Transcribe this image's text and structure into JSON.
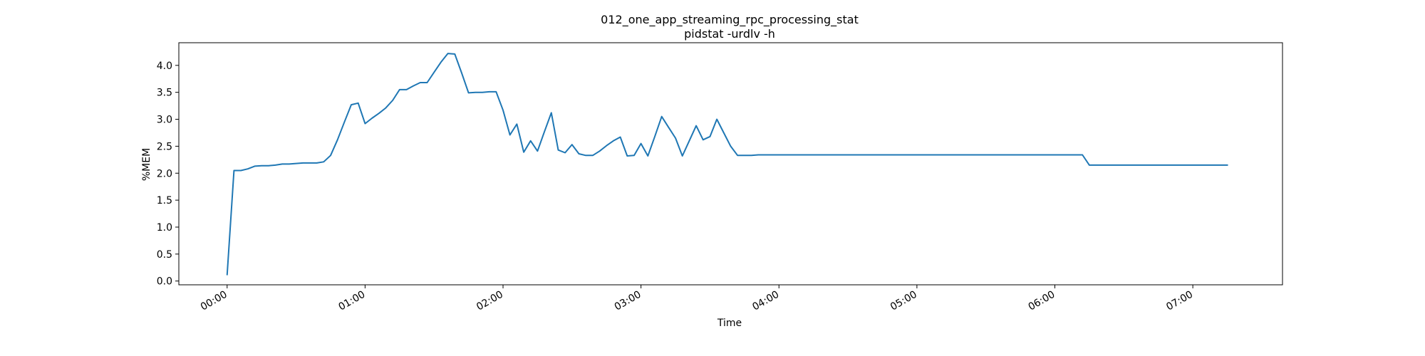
{
  "chart_data": {
    "type": "line",
    "title": "012_one_app_streaming_rpc_processing_stat",
    "subtitle": "pidstat -urdlv -h",
    "xlabel": "Time",
    "ylabel": "%MEM",
    "xlim": [
      "-00:21",
      "07:39"
    ],
    "ylim": [
      -0.07,
      4.42
    ],
    "x_ticks": [
      "00:00",
      "01:00",
      "02:00",
      "03:00",
      "04:00",
      "05:00",
      "06:00",
      "07:00"
    ],
    "y_ticks": [
      "0.0",
      "0.5",
      "1.0",
      "1.5",
      "2.0",
      "2.5",
      "3.0",
      "3.5",
      "4.0"
    ],
    "grid": false,
    "legend": "none",
    "line_color": "#1f77b4",
    "series": [
      {
        "x": [
          "00:00",
          "00:03",
          "00:06",
          "00:09",
          "00:12",
          "00:15",
          "00:18",
          "00:21",
          "00:24",
          "00:27",
          "00:30",
          "00:33",
          "00:36",
          "00:39",
          "00:42",
          "00:45",
          "00:48",
          "00:51",
          "00:54",
          "00:57",
          "01:00",
          "01:03",
          "01:06",
          "01:09",
          "01:12",
          "01:15",
          "01:18",
          "01:21",
          "01:24",
          "01:27",
          "01:30",
          "01:33",
          "01:36",
          "01:39",
          "01:42",
          "01:45",
          "01:48",
          "01:51",
          "01:54",
          "01:57",
          "02:00",
          "02:03",
          "02:06",
          "02:09",
          "02:12",
          "02:15",
          "02:18",
          "02:21",
          "02:24",
          "02:27",
          "02:30",
          "02:33",
          "02:36",
          "02:39",
          "02:42",
          "02:45",
          "02:48",
          "02:51",
          "02:54",
          "02:57",
          "03:00",
          "03:03",
          "03:06",
          "03:09",
          "03:12",
          "03:15",
          "03:18",
          "03:21",
          "03:24",
          "03:27",
          "03:30",
          "03:33",
          "03:36",
          "03:39",
          "03:42",
          "03:45",
          "03:48",
          "03:51",
          "03:54",
          "03:57",
          "04:00",
          "04:03",
          "06:09",
          "06:12",
          "06:15",
          "07:15"
        ],
        "y": [
          0.12,
          2.05,
          2.05,
          2.08,
          2.13,
          2.14,
          2.14,
          2.15,
          2.17,
          2.17,
          2.18,
          2.19,
          2.19,
          2.19,
          2.21,
          2.33,
          2.62,
          2.95,
          3.27,
          3.3,
          2.92,
          3.02,
          3.11,
          3.21,
          3.35,
          3.55,
          3.55,
          3.62,
          3.68,
          3.68,
          3.87,
          4.06,
          4.22,
          4.21,
          3.86,
          3.49,
          3.5,
          3.5,
          3.51,
          3.51,
          3.17,
          2.71,
          2.91,
          2.39,
          2.6,
          2.41,
          2.77,
          3.12,
          2.43,
          2.38,
          2.53,
          2.36,
          2.33,
          2.33,
          2.41,
          2.51,
          2.6,
          2.67,
          2.32,
          2.33,
          2.55,
          2.32,
          2.68,
          3.05,
          2.85,
          2.65,
          2.32,
          2.6,
          2.88,
          2.62,
          2.68,
          3.0,
          2.75,
          2.5,
          2.33,
          2.33,
          2.33,
          2.34,
          2.34,
          2.34,
          2.34,
          2.34,
          2.34,
          2.34,
          2.15,
          2.15
        ]
      }
    ]
  }
}
